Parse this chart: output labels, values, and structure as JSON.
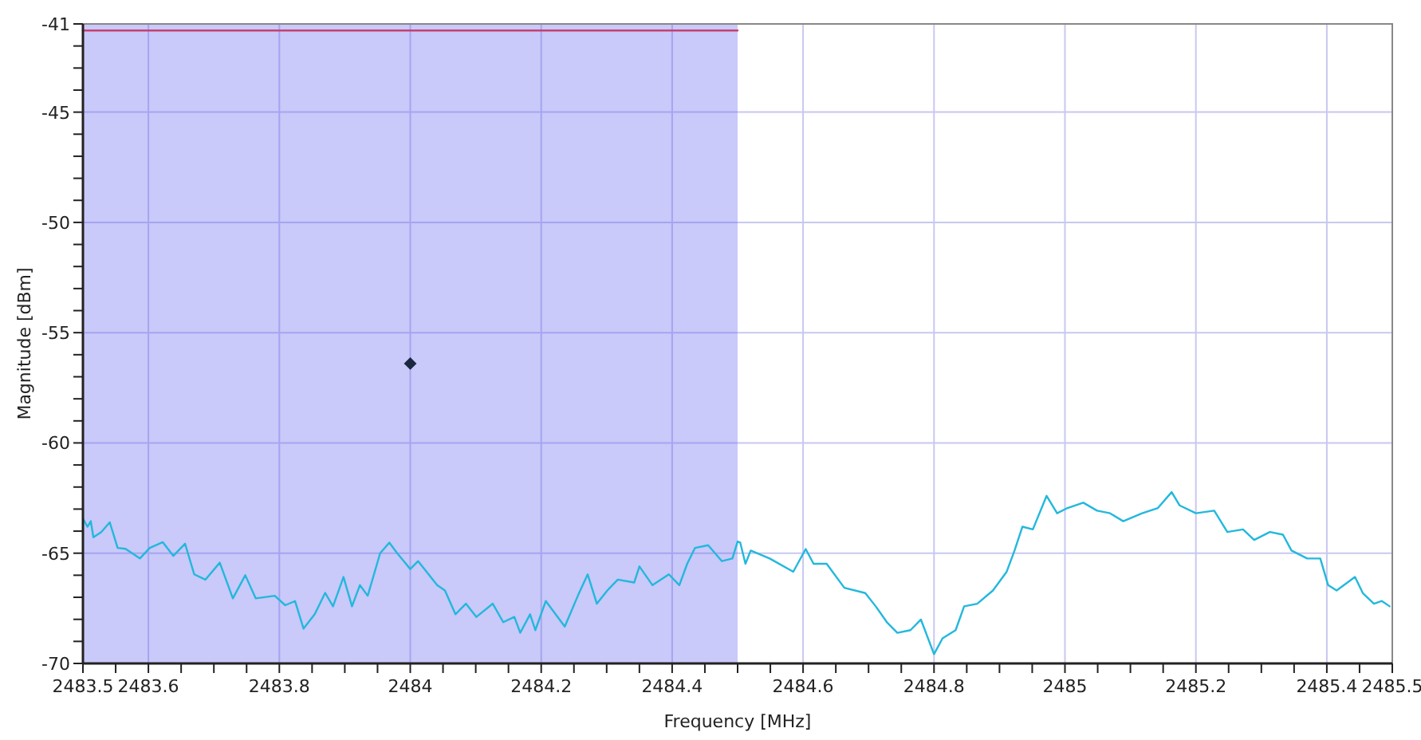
{
  "chart_data": {
    "type": "line",
    "xlabel": "Frequency [MHz]",
    "ylabel": "Magnitude [dBm]",
    "xlim": [
      2483.5,
      2485.5
    ],
    "xticks": [
      2483.5,
      2483.6,
      {
        "value": 2483.65,
        "label": null
      },
      2483.8,
      {
        "value": 2483.55,
        "label": null
      },
      {
        "value": 2483.7,
        "label": null
      },
      {
        "value": 2483.75,
        "label": null
      },
      {
        "value": 2483.85,
        "label": null
      },
      {
        "value": 2483.9,
        "label": null
      },
      {
        "value": 2483.95,
        "label": null
      },
      2484,
      {
        "value": 2484.05,
        "label": null
      },
      {
        "value": 2484.1,
        "label": null
      },
      {
        "value": 2484.15,
        "label": null
      },
      2484.2,
      {
        "value": 2484.25,
        "label": null
      },
      {
        "value": 2484.3,
        "label": null
      },
      {
        "value": 2484.35,
        "label": null
      },
      2484.4,
      {
        "value": 2484.45,
        "label": null
      },
      {
        "value": 2484.5,
        "label": null
      },
      {
        "value": 2484.55,
        "label": null
      },
      2484.6,
      {
        "value": 2484.65,
        "label": null
      },
      {
        "value": 2484.7,
        "label": null
      },
      {
        "value": 2484.75,
        "label": null
      },
      2484.8,
      {
        "value": 2484.85,
        "label": null
      },
      {
        "value": 2484.9,
        "label": null
      },
      {
        "value": 2484.95,
        "label": null
      },
      2485,
      {
        "value": 2485.05,
        "label": null
      },
      {
        "value": 2485.1,
        "label": null
      },
      {
        "value": 2485.15,
        "label": null
      },
      2485.2,
      {
        "value": 2485.25,
        "label": null
      },
      {
        "value": 2485.3,
        "label": null
      },
      {
        "value": 2485.35,
        "label": null
      },
      2485.4,
      {
        "value": 2485.45,
        "label": null
      },
      2485.5
    ],
    "ylim": [
      -70,
      -41
    ],
    "yticks": [
      -70,
      {
        "value": -69,
        "label": null
      },
      {
        "value": -68,
        "label": null
      },
      {
        "value": -67,
        "label": null
      },
      {
        "value": -66,
        "label": null
      },
      -65,
      {
        "value": -64,
        "label": null
      },
      {
        "value": -63,
        "label": null
      },
      {
        "value": -62,
        "label": null
      },
      {
        "value": -61,
        "label": null
      },
      -60,
      {
        "value": -59,
        "label": null
      },
      {
        "value": -58,
        "label": null
      },
      {
        "value": -57,
        "label": null
      },
      {
        "value": -56,
        "label": null
      },
      -55,
      {
        "value": -54,
        "label": null
      },
      {
        "value": -53,
        "label": null
      },
      {
        "value": -52,
        "label": null
      },
      {
        "value": -51,
        "label": null
      },
      -50,
      {
        "value": -49,
        "label": null
      },
      {
        "value": -48,
        "label": null
      },
      {
        "value": -47,
        "label": null
      },
      {
        "value": -46,
        "label": null
      },
      -45,
      {
        "value": -44,
        "label": null
      },
      {
        "value": -43,
        "label": null
      },
      {
        "value": -42,
        "label": null
      },
      -41
    ],
    "grid": true,
    "bands": [
      {
        "axis": "x",
        "from": 2483.5,
        "to": 2484.5,
        "color": "#6464f0"
      }
    ],
    "series": [
      {
        "color": "#22b8dc",
        "x": [
          2483.5,
          2483.507,
          2483.512,
          2483.516,
          2483.528,
          2483.541,
          2483.553,
          2483.565,
          2483.587,
          2483.602,
          2483.622,
          2483.638,
          2483.656,
          2483.67,
          2483.687,
          2483.709,
          2483.729,
          2483.748,
          2483.764,
          2483.793,
          2483.809,
          2483.824,
          2483.837,
          2483.854,
          2483.87,
          2483.882,
          2483.898,
          2483.911,
          2483.923,
          2483.935,
          2483.954,
          2483.968,
          2483.98,
          2484.0,
          2484.012,
          2484.028,
          2484.041,
          2484.053,
          2484.069,
          2484.085,
          2484.101,
          2484.126,
          2484.142,
          2484.159,
          2484.168,
          2484.183,
          2484.191,
          2484.207,
          2484.219,
          2484.236,
          2484.256,
          2484.271,
          2484.285,
          2484.301,
          2484.317,
          2484.342,
          2484.35,
          2484.37,
          2484.395,
          2484.411,
          2484.423,
          2484.435,
          2484.455,
          2484.476,
          2484.492,
          2484.5,
          2484.504,
          2484.512,
          2484.52,
          2484.549,
          2484.585,
          2484.604,
          2484.616,
          2484.636,
          2484.663,
          2484.695,
          2484.711,
          2484.728,
          2484.744,
          2484.764,
          2484.78,
          2484.8,
          2484.813,
          2484.833,
          2484.846,
          2484.866,
          2484.89,
          2484.911,
          2484.923,
          2484.935,
          2484.951,
          2484.972,
          2484.988,
          2485.004,
          2485.028,
          2485.049,
          2485.069,
          2485.089,
          2485.118,
          2485.142,
          2485.163,
          2485.175,
          2485.2,
          2485.228,
          2485.248,
          2485.272,
          2485.289,
          2485.313,
          2485.333,
          2485.346,
          2485.37,
          2485.39,
          2485.402,
          2485.415,
          2485.443,
          2485.455,
          2485.472,
          2485.484,
          2485.496
        ],
        "values": [
          -63.43,
          -63.8,
          -63.55,
          -64.28,
          -64.04,
          -63.6,
          -64.76,
          -64.8,
          -65.24,
          -64.76,
          -64.5,
          -65.12,
          -64.57,
          -65.96,
          -66.2,
          -65.43,
          -67.05,
          -66.0,
          -67.05,
          -66.93,
          -67.36,
          -67.17,
          -68.42,
          -67.77,
          -66.8,
          -67.41,
          -66.08,
          -67.41,
          -66.45,
          -66.93,
          -65.0,
          -64.52,
          -65.0,
          -65.72,
          -65.36,
          -65.96,
          -66.45,
          -66.69,
          -67.77,
          -67.29,
          -67.89,
          -67.29,
          -68.13,
          -67.89,
          -68.61,
          -67.77,
          -68.49,
          -67.17,
          -67.65,
          -68.33,
          -66.93,
          -65.96,
          -67.29,
          -66.69,
          -66.2,
          -66.33,
          -65.6,
          -66.45,
          -65.96,
          -66.45,
          -65.48,
          -64.76,
          -64.64,
          -65.36,
          -65.24,
          -64.47,
          -64.52,
          -65.48,
          -64.88,
          -65.24,
          -65.84,
          -64.81,
          -65.48,
          -65.48,
          -66.57,
          -66.81,
          -67.41,
          -68.13,
          -68.61,
          -68.49,
          -68.01,
          -69.58,
          -68.86,
          -68.49,
          -67.41,
          -67.29,
          -66.69,
          -65.84,
          -64.88,
          -63.8,
          -63.92,
          -62.4,
          -63.19,
          -62.95,
          -62.71,
          -63.07,
          -63.19,
          -63.55,
          -63.19,
          -62.95,
          -62.23,
          -62.83,
          -63.19,
          -63.07,
          -64.04,
          -63.92,
          -64.4,
          -64.04,
          -64.16,
          -64.88,
          -65.24,
          -65.24,
          -66.45,
          -66.69,
          -66.08,
          -66.81,
          -67.29,
          -67.17,
          -67.41
        ]
      },
      {
        "color": "#c8406e",
        "x": [
          2483.5,
          2484.5
        ],
        "values": [
          -41.3,
          -41.3
        ]
      },
      {
        "type": "scatter",
        "color": "#1a2840",
        "marker": "diamond",
        "x": [
          2484
        ],
        "values": [
          -56.4
        ]
      }
    ]
  }
}
